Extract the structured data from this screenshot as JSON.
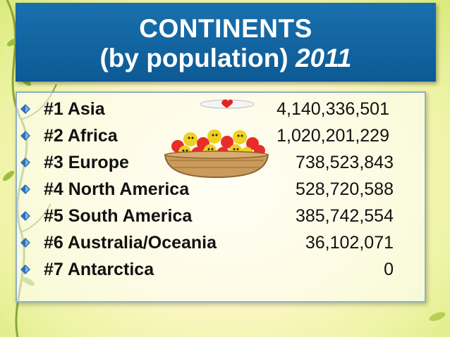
{
  "title": {
    "line1": "CONTINENTS",
    "line2_prefix": "(by population)",
    "line2_year": "2011"
  },
  "rows": [
    {
      "label": "#1 Asia",
      "value": "4,140,336,501"
    },
    {
      "label": "#2 Africa",
      "value": "1,020,201,229"
    },
    {
      "label": "#3 Europe",
      "value": "738,523,843"
    },
    {
      "label": "#4 North America",
      "value": "528,720,588"
    },
    {
      "label": "#5 South America",
      "value": "385,742,554"
    },
    {
      "label": "#6 Australia/Oceania",
      "value": "36,102,071"
    },
    {
      "label": "#7 Antarctica",
      "value": "0"
    }
  ],
  "colors": {
    "title_bg": "#1970ad",
    "bullet": "#2a6fb8"
  },
  "icons": {
    "bullet": "diamond-bullet-icon",
    "decoration": "fruit-bowl-icon"
  }
}
